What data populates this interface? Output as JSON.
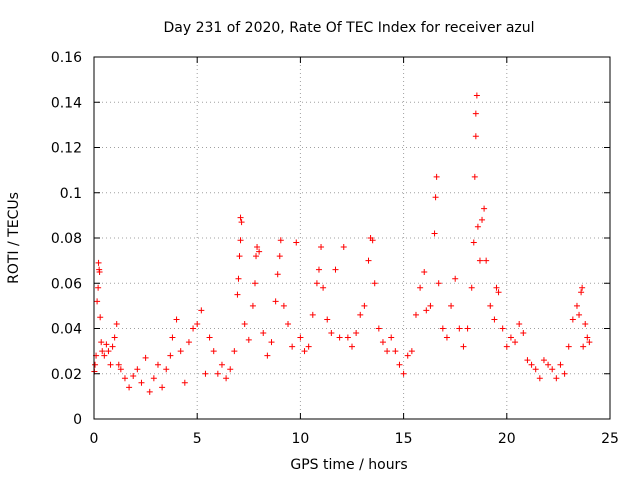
{
  "chart_data": {
    "type": "scatter",
    "title": "Day 231 of 2020, Rate Of TEC Index for receiver azul",
    "xlabel": "GPS time / hours",
    "ylabel": "ROTI / TECUs",
    "xlim": [
      0,
      25
    ],
    "ylim": [
      0,
      0.16
    ],
    "x_ticks": [
      "0",
      "5",
      "10",
      "15",
      "20",
      "25"
    ],
    "y_ticks": [
      "0",
      "0.02",
      "0.04",
      "0.06",
      "0.08",
      "0.1",
      "0.12",
      "0.14",
      "0.16"
    ],
    "grid": true,
    "marker": "+",
    "color": "#ff0000",
    "series": [
      {
        "values": [
          [
            0.02,
            0.021
          ],
          [
            0.05,
            0.024
          ],
          [
            0.1,
            0.028
          ],
          [
            0.15,
            0.052
          ],
          [
            0.2,
            0.058
          ],
          [
            0.22,
            0.069
          ],
          [
            0.25,
            0.066
          ],
          [
            0.27,
            0.065
          ],
          [
            0.3,
            0.045
          ],
          [
            0.35,
            0.034
          ],
          [
            0.4,
            0.03
          ],
          [
            0.5,
            0.028
          ],
          [
            0.6,
            0.033
          ],
          [
            0.7,
            0.03
          ],
          [
            0.8,
            0.024
          ],
          [
            0.9,
            0.032
          ],
          [
            1.0,
            0.036
          ],
          [
            1.1,
            0.042
          ],
          [
            1.2,
            0.024
          ],
          [
            1.3,
            0.022
          ],
          [
            1.5,
            0.018
          ],
          [
            1.7,
            0.014
          ],
          [
            1.9,
            0.019
          ],
          [
            2.1,
            0.022
          ],
          [
            2.3,
            0.016
          ],
          [
            2.5,
            0.027
          ],
          [
            2.7,
            0.012
          ],
          [
            2.9,
            0.018
          ],
          [
            3.1,
            0.024
          ],
          [
            3.3,
            0.014
          ],
          [
            3.5,
            0.022
          ],
          [
            3.7,
            0.028
          ],
          [
            3.8,
            0.036
          ],
          [
            4.0,
            0.044
          ],
          [
            4.2,
            0.03
          ],
          [
            4.4,
            0.016
          ],
          [
            4.6,
            0.034
          ],
          [
            4.8,
            0.04
          ],
          [
            5.0,
            0.042
          ],
          [
            5.2,
            0.048
          ],
          [
            5.4,
            0.02
          ],
          [
            5.6,
            0.036
          ],
          [
            5.8,
            0.03
          ],
          [
            6.0,
            0.02
          ],
          [
            6.2,
            0.024
          ],
          [
            6.4,
            0.018
          ],
          [
            6.6,
            0.022
          ],
          [
            6.8,
            0.03
          ],
          [
            6.95,
            0.055
          ],
          [
            7.0,
            0.062
          ],
          [
            7.05,
            0.072
          ],
          [
            7.1,
            0.079
          ],
          [
            7.1,
            0.089
          ],
          [
            7.15,
            0.087
          ],
          [
            7.3,
            0.042
          ],
          [
            7.5,
            0.035
          ],
          [
            7.7,
            0.05
          ],
          [
            7.8,
            0.06
          ],
          [
            7.85,
            0.072
          ],
          [
            7.9,
            0.076
          ],
          [
            8.0,
            0.074
          ],
          [
            8.2,
            0.038
          ],
          [
            8.4,
            0.028
          ],
          [
            8.6,
            0.034
          ],
          [
            8.8,
            0.052
          ],
          [
            8.9,
            0.064
          ],
          [
            9.0,
            0.072
          ],
          [
            9.05,
            0.079
          ],
          [
            9.2,
            0.05
          ],
          [
            9.4,
            0.042
          ],
          [
            9.6,
            0.032
          ],
          [
            9.8,
            0.078
          ],
          [
            10.0,
            0.036
          ],
          [
            10.2,
            0.03
          ],
          [
            10.4,
            0.032
          ],
          [
            10.6,
            0.046
          ],
          [
            10.8,
            0.06
          ],
          [
            10.9,
            0.066
          ],
          [
            11.0,
            0.076
          ],
          [
            11.1,
            0.058
          ],
          [
            11.3,
            0.044
          ],
          [
            11.5,
            0.038
          ],
          [
            11.7,
            0.066
          ],
          [
            11.9,
            0.036
          ],
          [
            12.1,
            0.076
          ],
          [
            12.3,
            0.036
          ],
          [
            12.5,
            0.032
          ],
          [
            12.7,
            0.038
          ],
          [
            12.9,
            0.046
          ],
          [
            13.1,
            0.05
          ],
          [
            13.3,
            0.07
          ],
          [
            13.4,
            0.08
          ],
          [
            13.5,
            0.079
          ],
          [
            13.6,
            0.06
          ],
          [
            13.8,
            0.04
          ],
          [
            14.0,
            0.034
          ],
          [
            14.2,
            0.03
          ],
          [
            14.4,
            0.036
          ],
          [
            14.6,
            0.03
          ],
          [
            14.8,
            0.024
          ],
          [
            15.0,
            0.02
          ],
          [
            15.2,
            0.028
          ],
          [
            15.4,
            0.03
          ],
          [
            15.6,
            0.046
          ],
          [
            15.8,
            0.058
          ],
          [
            16.0,
            0.065
          ],
          [
            16.1,
            0.048
          ],
          [
            16.3,
            0.05
          ],
          [
            16.5,
            0.082
          ],
          [
            16.55,
            0.098
          ],
          [
            16.6,
            0.107
          ],
          [
            16.7,
            0.06
          ],
          [
            16.9,
            0.04
          ],
          [
            17.1,
            0.036
          ],
          [
            17.3,
            0.05
          ],
          [
            17.5,
            0.062
          ],
          [
            17.7,
            0.04
          ],
          [
            17.9,
            0.032
          ],
          [
            18.1,
            0.04
          ],
          [
            18.3,
            0.058
          ],
          [
            18.4,
            0.078
          ],
          [
            18.45,
            0.107
          ],
          [
            18.5,
            0.125
          ],
          [
            18.5,
            0.135
          ],
          [
            18.55,
            0.143
          ],
          [
            18.6,
            0.085
          ],
          [
            18.7,
            0.07
          ],
          [
            18.8,
            0.088
          ],
          [
            18.9,
            0.093
          ],
          [
            19.0,
            0.07
          ],
          [
            19.2,
            0.05
          ],
          [
            19.4,
            0.044
          ],
          [
            19.5,
            0.058
          ],
          [
            19.6,
            0.056
          ],
          [
            19.8,
            0.04
          ],
          [
            20.0,
            0.032
          ],
          [
            20.2,
            0.036
          ],
          [
            20.4,
            0.034
          ],
          [
            20.6,
            0.042
          ],
          [
            20.8,
            0.038
          ],
          [
            21.0,
            0.026
          ],
          [
            21.2,
            0.024
          ],
          [
            21.4,
            0.022
          ],
          [
            21.6,
            0.018
          ],
          [
            21.8,
            0.026
          ],
          [
            22.0,
            0.024
          ],
          [
            22.2,
            0.022
          ],
          [
            22.4,
            0.018
          ],
          [
            22.6,
            0.024
          ],
          [
            22.8,
            0.02
          ],
          [
            23.0,
            0.032
          ],
          [
            23.2,
            0.044
          ],
          [
            23.4,
            0.05
          ],
          [
            23.5,
            0.046
          ],
          [
            23.6,
            0.056
          ],
          [
            23.65,
            0.058
          ],
          [
            23.7,
            0.032
          ],
          [
            23.8,
            0.042
          ],
          [
            23.9,
            0.036
          ],
          [
            24.0,
            0.034
          ]
        ]
      }
    ]
  }
}
